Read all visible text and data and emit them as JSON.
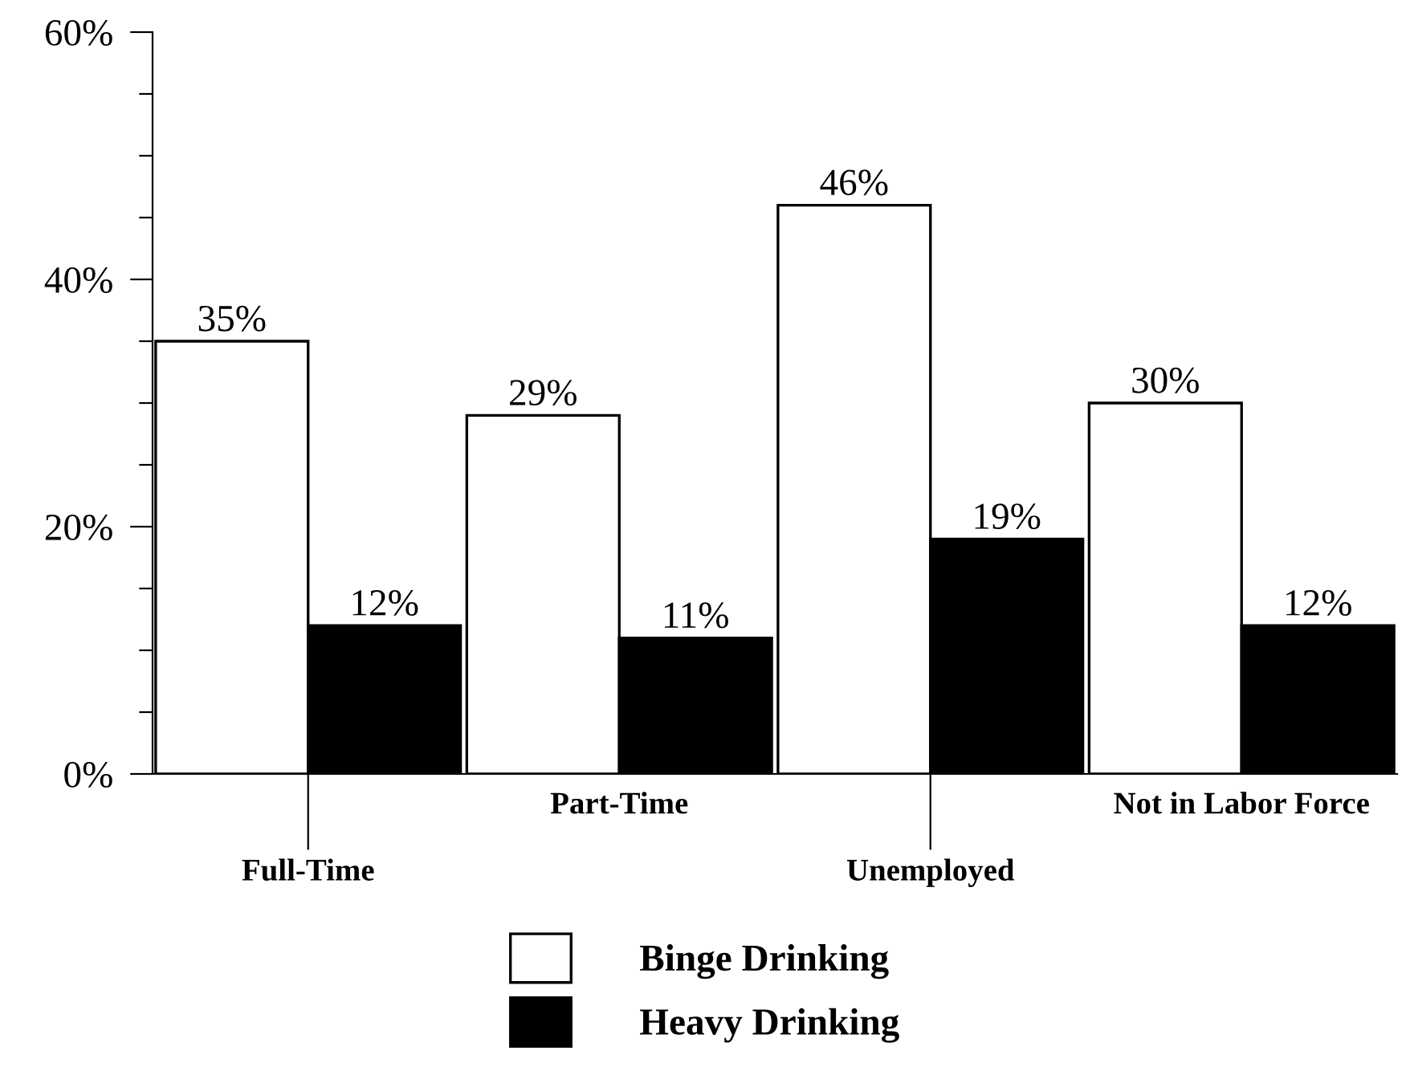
{
  "chart_data": {
    "type": "bar",
    "categories": [
      "Full-Time",
      "Part-Time",
      "Unemployed",
      "Not in Labor Force"
    ],
    "series": [
      {
        "name": "Binge Drinking",
        "color": "#ffffff",
        "values": [
          35,
          29,
          46,
          30
        ]
      },
      {
        "name": "Heavy Drinking",
        "color": "#000000",
        "values": [
          12,
          11,
          19,
          12
        ]
      }
    ],
    "value_labels": [
      [
        "35%",
        "29%",
        "46%",
        "30%"
      ],
      [
        "12%",
        "11%",
        "19%",
        "12%"
      ]
    ],
    "ylim": [
      0,
      60
    ],
    "yticks": [
      {
        "value": 0,
        "label": "0%"
      },
      {
        "value": 5,
        "label": null
      },
      {
        "value": 10,
        "label": null
      },
      {
        "value": 15,
        "label": null
      },
      {
        "value": 20,
        "label": "20%"
      },
      {
        "value": 25,
        "label": null
      },
      {
        "value": 30,
        "label": null
      },
      {
        "value": 35,
        "label": null
      },
      {
        "value": 40,
        "label": "40%"
      },
      {
        "value": 45,
        "label": null
      },
      {
        "value": 50,
        "label": null
      },
      {
        "value": 55,
        "label": null
      },
      {
        "value": 60,
        "label": "60%"
      }
    ],
    "grid": false,
    "legend": "bottom"
  }
}
